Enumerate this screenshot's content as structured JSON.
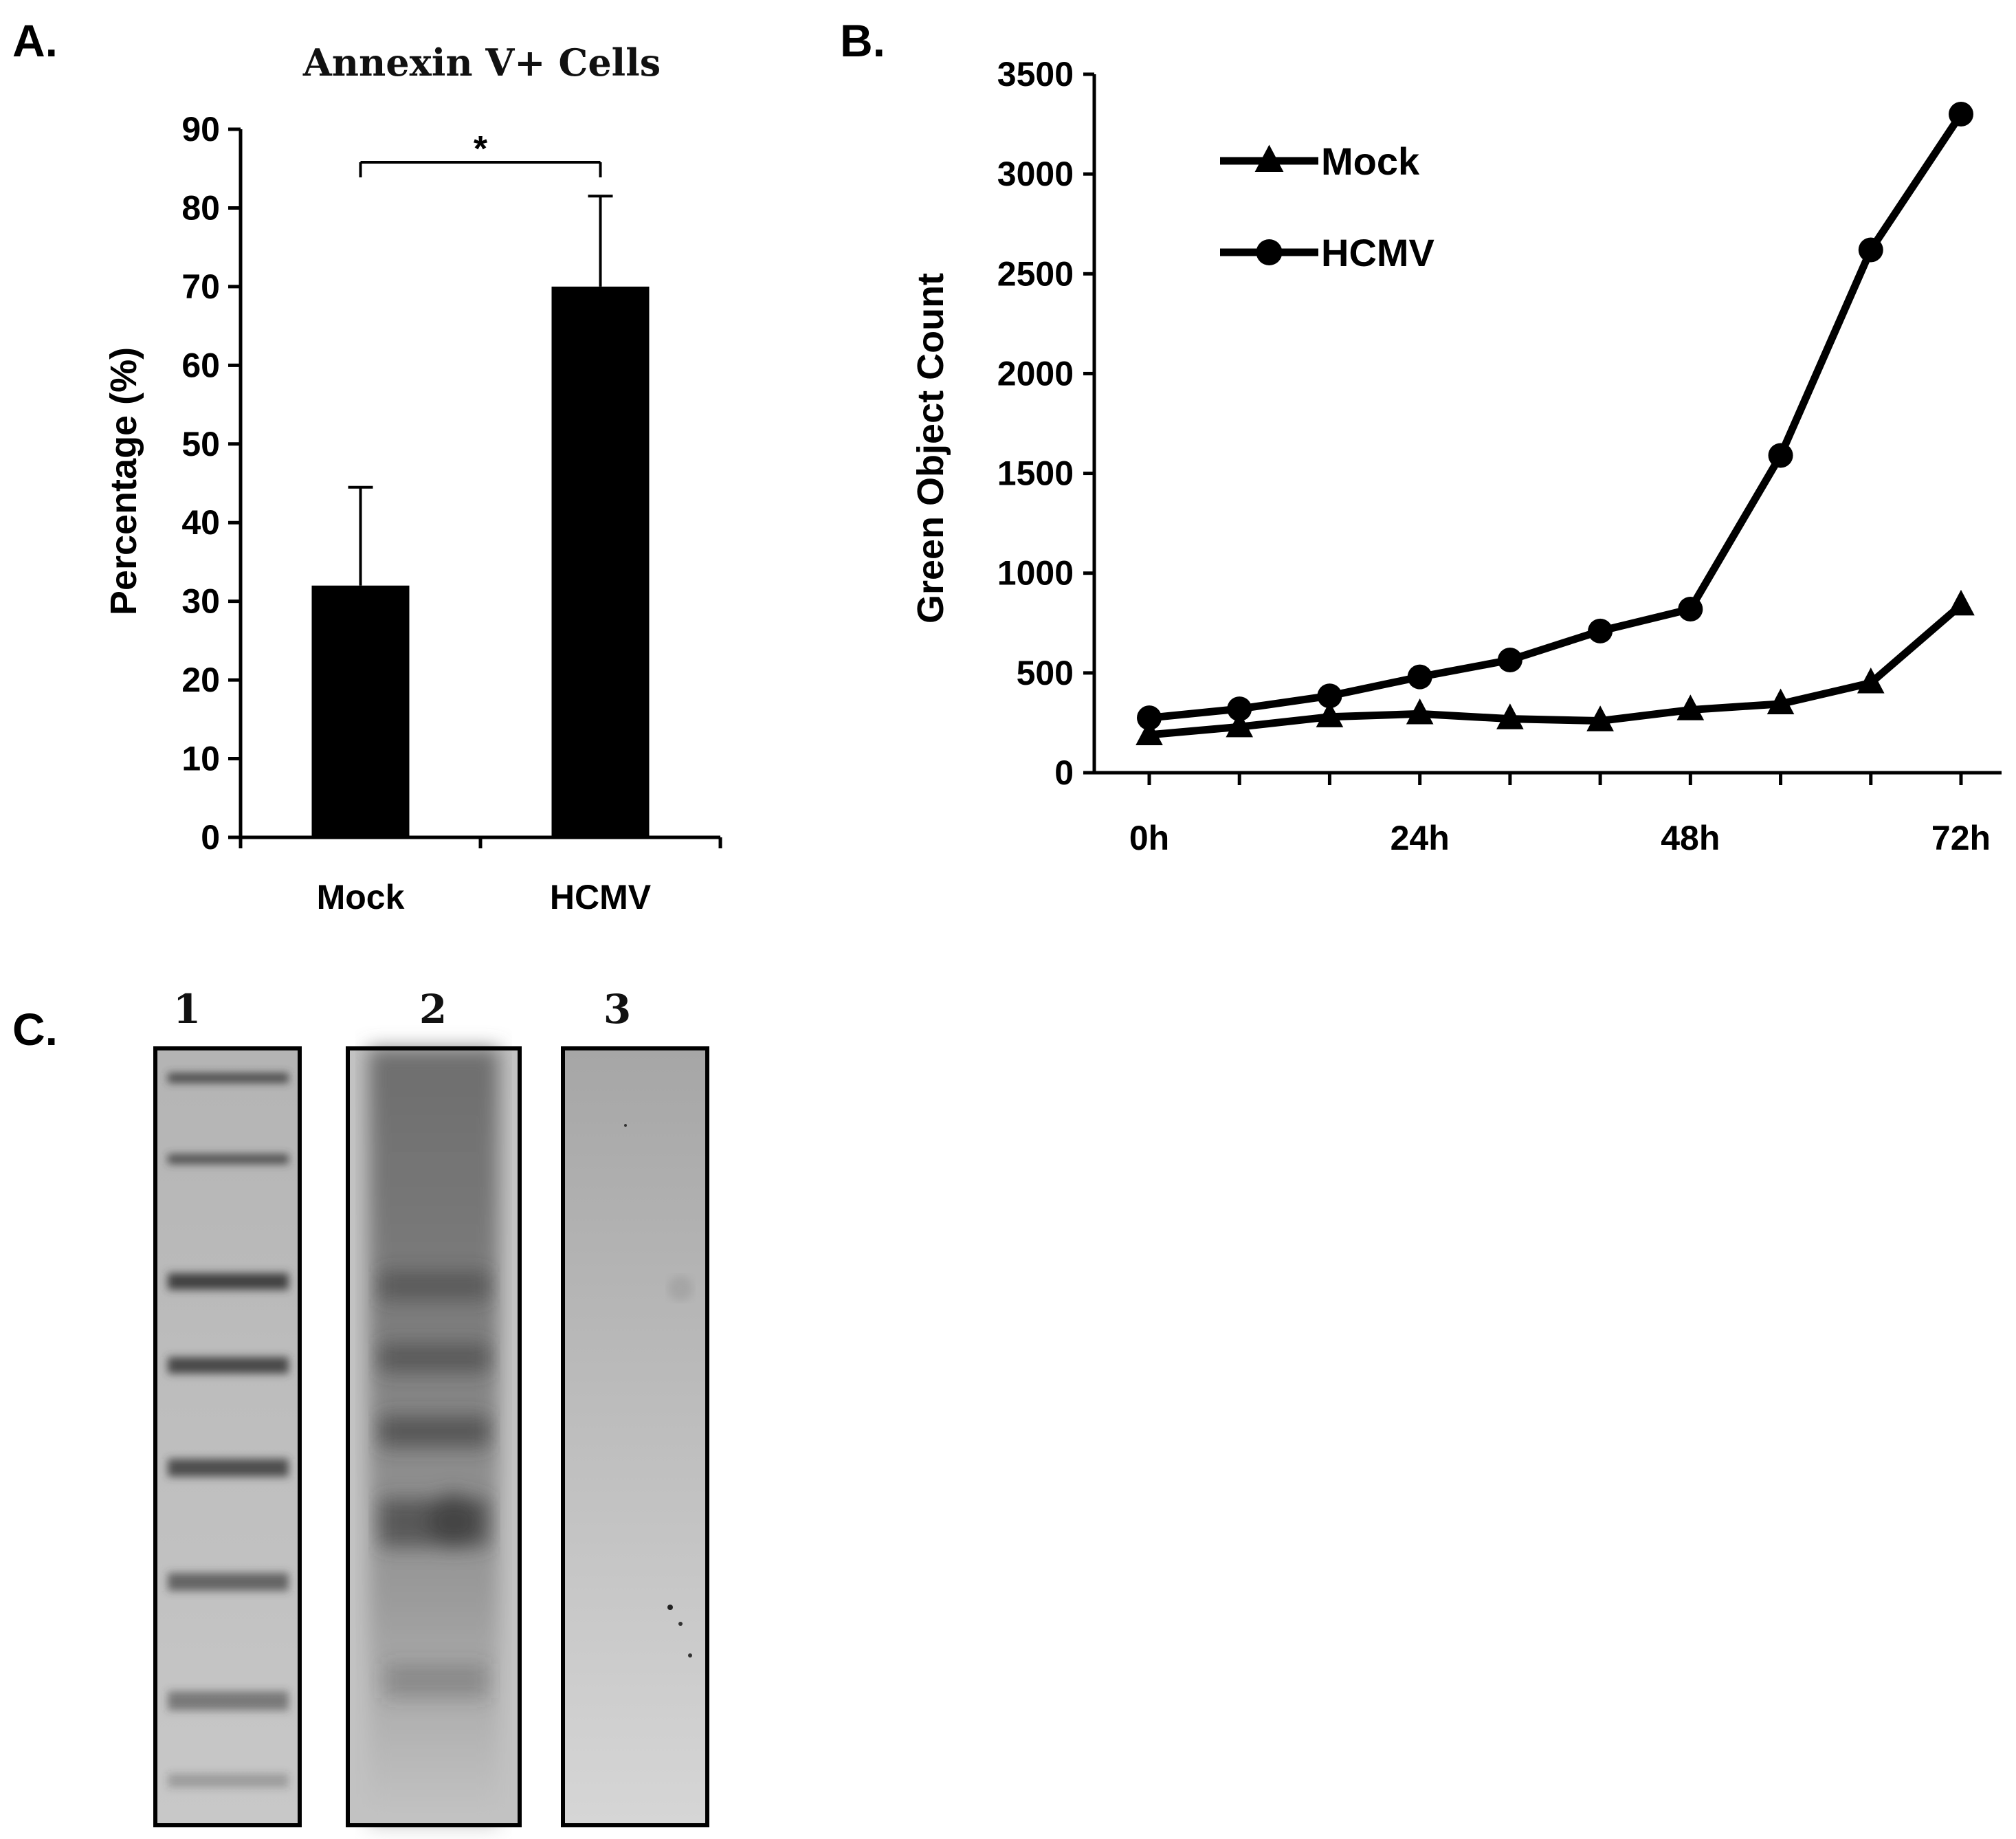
{
  "panels": {
    "a": {
      "letter": "A."
    },
    "b": {
      "letter": "B."
    },
    "c": {
      "letter": "C."
    }
  },
  "chart_data": [
    {
      "id": "A",
      "type": "bar",
      "title": "Annexin V+ Cells",
      "ylabel": "Percentage (%)",
      "xlabel": "",
      "categories": [
        "Mock",
        "HCMV"
      ],
      "values": [
        32,
        70
      ],
      "error_upper": [
        12.5,
        11.5
      ],
      "ylim": [
        0,
        90
      ],
      "yticks": [
        "0",
        "10",
        "20",
        "30",
        "40",
        "50",
        "60",
        "70",
        "80",
        "90"
      ],
      "significance": {
        "between": [
          "Mock",
          "HCMV"
        ],
        "label": "*"
      },
      "bar_color": "#000000",
      "grid": false,
      "legend": "none"
    },
    {
      "id": "B",
      "type": "line",
      "title": "",
      "ylabel": "Green Object Count",
      "xlabel": "",
      "x": [
        0,
        8,
        16,
        24,
        32,
        40,
        48,
        56,
        64,
        72
      ],
      "xticks": [
        "0h",
        "24h",
        "48h",
        "72h"
      ],
      "xtick_positions": [
        0,
        24,
        48,
        72
      ],
      "ylim": [
        0,
        3500
      ],
      "yticks": [
        "0",
        "500",
        "1000",
        "1500",
        "2000",
        "2500",
        "3000",
        "3500"
      ],
      "series": [
        {
          "name": "Mock",
          "marker": "triangle",
          "values": [
            190,
            230,
            280,
            295,
            270,
            260,
            315,
            345,
            450,
            840
          ]
        },
        {
          "name": "HCMV",
          "marker": "circle",
          "values": [
            275,
            320,
            385,
            480,
            565,
            710,
            820,
            1590,
            2620,
            3300
          ]
        }
      ],
      "grid": false,
      "legend": "top-left"
    }
  ],
  "gel": {
    "lanes": [
      {
        "label": "1",
        "description_type": "ladder"
      },
      {
        "label": "2",
        "description_type": "smear"
      },
      {
        "label": "3",
        "description_type": "blank"
      }
    ]
  }
}
